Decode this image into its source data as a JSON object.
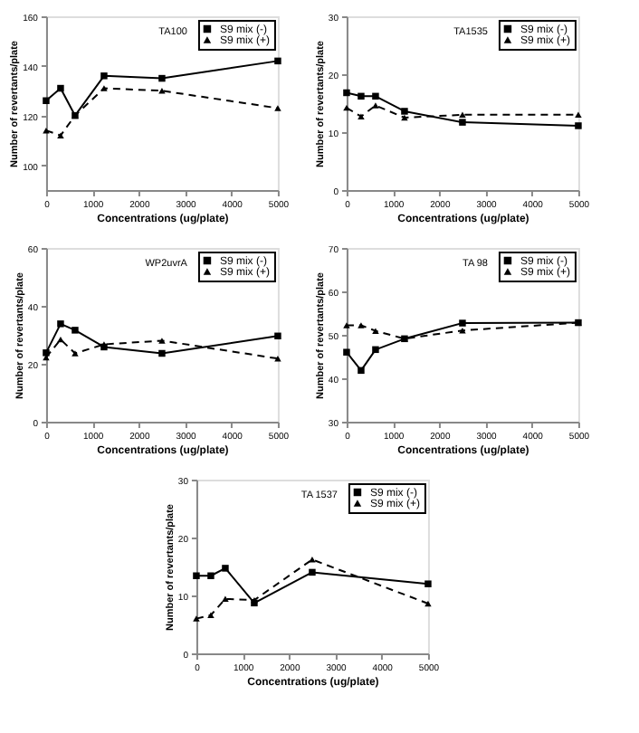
{
  "chart_data": [
    {
      "type": "line",
      "title": "TA100",
      "xlabel": "Concentrations (ug/plate)",
      "ylabel": "Number of revertants/plate",
      "x": [
        0,
        312.5,
        625,
        1250,
        2500,
        5000
      ],
      "xlim": [
        0,
        5000
      ],
      "xticks": [
        0,
        1000,
        2000,
        3000,
        4000,
        5000
      ],
      "ylim": [
        90,
        160
      ],
      "yticks": [
        100,
        120,
        140,
        160
      ],
      "grid": false,
      "legend": "top right",
      "series": [
        {
          "name": "S9 mix (-)",
          "color": "#000000",
          "marker": "square",
          "line_style": "solid",
          "values": [
            126,
            131,
            120,
            136,
            135,
            142
          ]
        },
        {
          "name": "S9 mix (+)",
          "color": "#000000",
          "marker": "triangle",
          "line_style": "dashed",
          "values": [
            114,
            112,
            120,
            131,
            130,
            123
          ]
        }
      ]
    },
    {
      "type": "line",
      "title": "TA1535",
      "xlabel": "Concentrations (ug/plate)",
      "ylabel": "Number of revertants/plate",
      "x": [
        0,
        312.5,
        625,
        1250,
        2500,
        5000
      ],
      "xlim": [
        0,
        5000
      ],
      "xticks": [
        0,
        1000,
        2000,
        3000,
        4000,
        5000
      ],
      "ylim": [
        0,
        30
      ],
      "yticks": [
        0,
        10,
        20,
        30
      ],
      "grid": false,
      "legend": "top right",
      "series": [
        {
          "name": "S9 mix (-)",
          "color": "#000000",
          "marker": "square",
          "line_style": "solid",
          "values": [
            16.8,
            16.2,
            16.2,
            13.6,
            11.7,
            11.1
          ]
        },
        {
          "name": "S9 mix (+)",
          "color": "#000000",
          "marker": "triangle",
          "line_style": "dashed",
          "values": [
            14.2,
            12.7,
            14.6,
            12.5,
            13,
            13
          ]
        }
      ]
    },
    {
      "type": "line",
      "title": "WP2uvrA",
      "xlabel": "Concentrations (ug/plate)",
      "ylabel": "Number of revertants/plate",
      "x": [
        0,
        312.5,
        625,
        1250,
        2500,
        5000
      ],
      "xlim": [
        0,
        5000
      ],
      "xticks": [
        0,
        1000,
        2000,
        3000,
        4000,
        5000
      ],
      "ylim": [
        0,
        60
      ],
      "yticks": [
        0,
        20,
        40,
        60
      ],
      "grid": false,
      "legend": "top right",
      "series": [
        {
          "name": "S9 mix (-)",
          "color": "#000000",
          "marker": "square",
          "line_style": "solid",
          "values": [
            23.8,
            33.8,
            31.6,
            25.8,
            23.6,
            29.6
          ]
        },
        {
          "name": "S9 mix (+)",
          "color": "#000000",
          "marker": "triangle",
          "line_style": "dashed",
          "values": [
            22.2,
            28.4,
            23.6,
            26.7,
            28,
            21.8
          ]
        }
      ]
    },
    {
      "type": "line",
      "title": "TA 98",
      "xlabel": "Concentrations (ug/plate)",
      "ylabel": "Number of revertants/plate",
      "x": [
        0,
        312.5,
        625,
        1250,
        2500,
        5000
      ],
      "xlim": [
        0,
        5000
      ],
      "xticks": [
        0,
        1000,
        2000,
        3000,
        4000,
        5000
      ],
      "ylim": [
        30,
        70
      ],
      "yticks": [
        30,
        40,
        50,
        60,
        70
      ],
      "grid": false,
      "legend": "top right",
      "series": [
        {
          "name": "S9 mix (-)",
          "color": "#000000",
          "marker": "square",
          "line_style": "solid",
          "values": [
            46,
            41.8,
            46.6,
            49.1,
            52.7,
            52.8
          ]
        },
        {
          "name": "S9 mix (+)",
          "color": "#000000",
          "marker": "triangle",
          "line_style": "dashed",
          "values": [
            52.2,
            52.2,
            50.9,
            49.1,
            51,
            52.8
          ]
        }
      ]
    },
    {
      "type": "line",
      "title": "TA 1537",
      "xlabel": "Concentrations (ug/plate)",
      "ylabel": "Number of revertants/plate",
      "x": [
        0,
        312.5,
        625,
        1250,
        2500,
        5000
      ],
      "xlim": [
        0,
        5000
      ],
      "xticks": [
        0,
        1000,
        2000,
        3000,
        4000,
        5000
      ],
      "ylim": [
        0,
        30
      ],
      "yticks": [
        0,
        10,
        20,
        30
      ],
      "grid": false,
      "legend": "top right",
      "series": [
        {
          "name": "S9 mix (-)",
          "color": "#000000",
          "marker": "square",
          "line_style": "solid",
          "values": [
            13.4,
            13.4,
            14.7,
            8.7,
            14,
            12
          ]
        },
        {
          "name": "S9 mix (+)",
          "color": "#000000",
          "marker": "triangle",
          "line_style": "dashed",
          "values": [
            6,
            6.6,
            9.4,
            9.2,
            16.2,
            8.6
          ]
        }
      ]
    }
  ]
}
